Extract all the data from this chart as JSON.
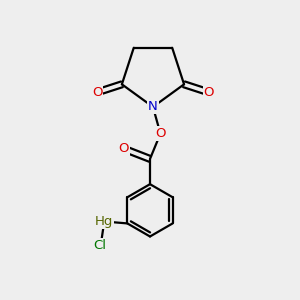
{
  "bg_color": "#eeeeee",
  "atom_colors": {
    "C": "#000000",
    "N": "#0000cc",
    "O": "#dd0000",
    "Hg": "#556600",
    "Cl": "#007700"
  },
  "bond_color": "#000000",
  "bond_width": 1.6,
  "font_size_atom": 9.5
}
